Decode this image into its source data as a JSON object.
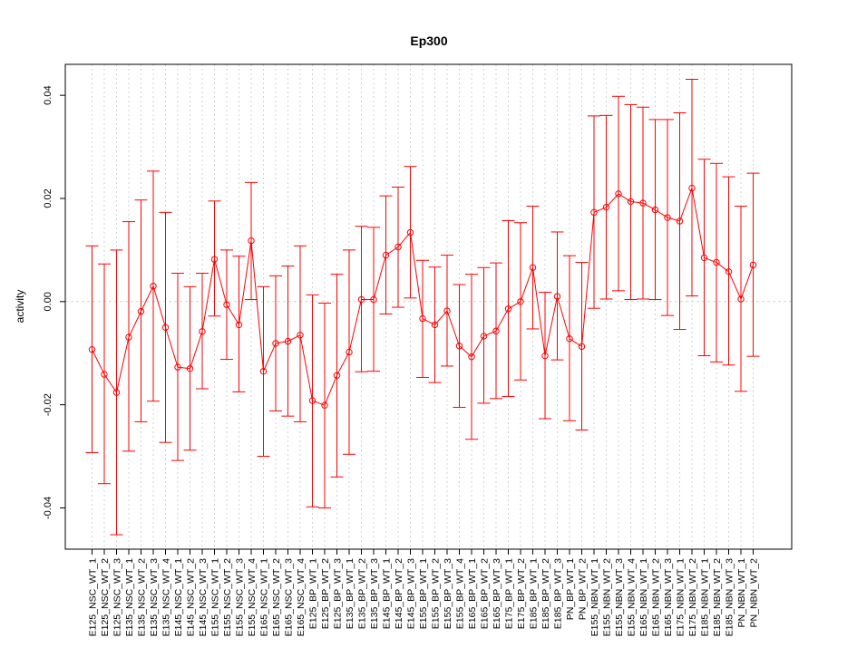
{
  "chart_data": {
    "type": "line",
    "title": "Ep300",
    "xlabel": "",
    "ylabel": "activity",
    "ylim": [
      -0.048,
      0.046
    ],
    "y_ticks": [
      -0.04,
      -0.02,
      0.0,
      0.02,
      0.04
    ],
    "y_tick_labels": [
      "-0.04",
      "-0.02",
      "0.00",
      "0.02",
      "0.04"
    ],
    "reference_line": 0.0,
    "grid": "vertical dotted",
    "colors": {
      "series": "#ff0000",
      "grid": "#d3d3d3",
      "frame": "#000000"
    },
    "categories": [
      "E125_NSC_WT_1",
      "E125_NSC_WT_2",
      "E125_NSC_WT_3",
      "E135_NSC_WT_1",
      "E135_NSC_WT_2",
      "E135_NSC_WT_3",
      "E135_NSC_WT_4",
      "E145_NSC_WT_1",
      "E145_NSC_WT_2",
      "E145_NSC_WT_3",
      "E155_NSC_WT_1",
      "E155_NSC_WT_2",
      "E155_NSC_WT_3",
      "E155_NSC_WT_4",
      "E165_NSC_WT_1",
      "E165_NSC_WT_2",
      "E165_NSC_WT_3",
      "E165_NSC_WT_4",
      "E125_BP_WT_1",
      "E125_BP_WT_2",
      "E125_BP_WT_3",
      "E135_BP_WT_1",
      "E135_BP_WT_2",
      "E135_BP_WT_3",
      "E145_BP_WT_1",
      "E145_BP_WT_2",
      "E145_BP_WT_3",
      "E155_BP_WT_1",
      "E155_BP_WT_2",
      "E155_BP_WT_3",
      "E155_BP_WT_4",
      "E165_BP_WT_1",
      "E165_BP_WT_2",
      "E165_BP_WT_3",
      "E175_BP_WT_1",
      "E175_BP_WT_2",
      "E185_BP_WT_1",
      "E185_BP_WT_2",
      "E185_BP_WT_3",
      "PN_BP_WT_1",
      "PN_BP_WT_2",
      "E155_NBN_WT_1",
      "E155_NBN_WT_2",
      "E155_NBN_WT_3",
      "E155_NBN_WT_4",
      "E165_NBN_WT_1",
      "E165_NBN_WT_2",
      "E165_NBN_WT_3",
      "E175_NBN_WT_1",
      "E175_NBN_WT_2",
      "E185_NBN_WT_1",
      "E185_NBN_WT_2",
      "E185_NBN_WT_3",
      "PN_NBN_WT_1",
      "PN_NBN_WT_2"
    ],
    "series": [
      {
        "values": [
          -0.0093,
          -0.0141,
          -0.0176,
          -0.0069,
          -0.0019,
          0.003,
          -0.005,
          -0.0127,
          -0.013,
          -0.0058,
          0.0082,
          -0.0006,
          -0.0045,
          0.0118,
          -0.0135,
          -0.0081,
          -0.0077,
          -0.0065,
          -0.0192,
          -0.0201,
          -0.0143,
          -0.0098,
          0.0004,
          0.0004,
          0.009,
          0.0106,
          0.0134,
          -0.0033,
          -0.0045,
          -0.0018,
          -0.0086,
          -0.0107,
          -0.0067,
          -0.0057,
          -0.0014,
          0.0,
          0.0066,
          -0.0105,
          0.001,
          -0.0072,
          -0.0087,
          0.0173,
          0.0183,
          0.0209,
          0.0194,
          0.0191,
          0.0178,
          0.0163,
          0.0156,
          0.022,
          0.0085,
          0.0076,
          0.0058,
          0.0005,
          0.0071
        ],
        "upper": [
          0.0108,
          0.0073,
          0.01,
          0.0155,
          0.0197,
          0.0253,
          0.0173,
          0.0055,
          0.0029,
          0.0055,
          0.0195,
          0.01,
          0.0088,
          0.0231,
          0.0029,
          0.005,
          0.0069,
          0.0108,
          0.0013,
          -0.0003,
          0.0053,
          0.01,
          0.0146,
          0.0144,
          0.0205,
          0.0222,
          0.0262,
          0.008,
          0.0067,
          0.009,
          0.0033,
          0.0053,
          0.0066,
          0.0075,
          0.0157,
          0.0153,
          0.0185,
          0.0018,
          0.0135,
          0.0089,
          0.0076,
          0.036,
          0.0361,
          0.0398,
          0.0382,
          0.0377,
          0.0353,
          0.0353,
          0.0366,
          0.0431,
          0.0276,
          0.0268,
          0.0242,
          0.0185,
          0.0249
        ],
        "lower": [
          -0.0293,
          -0.0353,
          -0.0452,
          -0.029,
          -0.0233,
          -0.0193,
          -0.0273,
          -0.0308,
          -0.0288,
          -0.0169,
          -0.0028,
          -0.0112,
          -0.0175,
          0.0004,
          -0.03,
          -0.0212,
          -0.0222,
          -0.0233,
          -0.0398,
          -0.04,
          -0.034,
          -0.0296,
          -0.0136,
          -0.0135,
          -0.0024,
          -0.0011,
          0.0007,
          -0.0147,
          -0.0157,
          -0.0125,
          -0.0205,
          -0.0267,
          -0.0197,
          -0.0188,
          -0.0184,
          -0.0152,
          -0.0053,
          -0.0227,
          -0.0113,
          -0.0231,
          -0.0249,
          -0.0013,
          0.0005,
          0.0021,
          0.0004,
          0.0005,
          0.0004,
          -0.0027,
          -0.0054,
          0.0011,
          -0.0105,
          -0.0117,
          -0.0123,
          -0.0174,
          -0.0106
        ]
      }
    ]
  }
}
